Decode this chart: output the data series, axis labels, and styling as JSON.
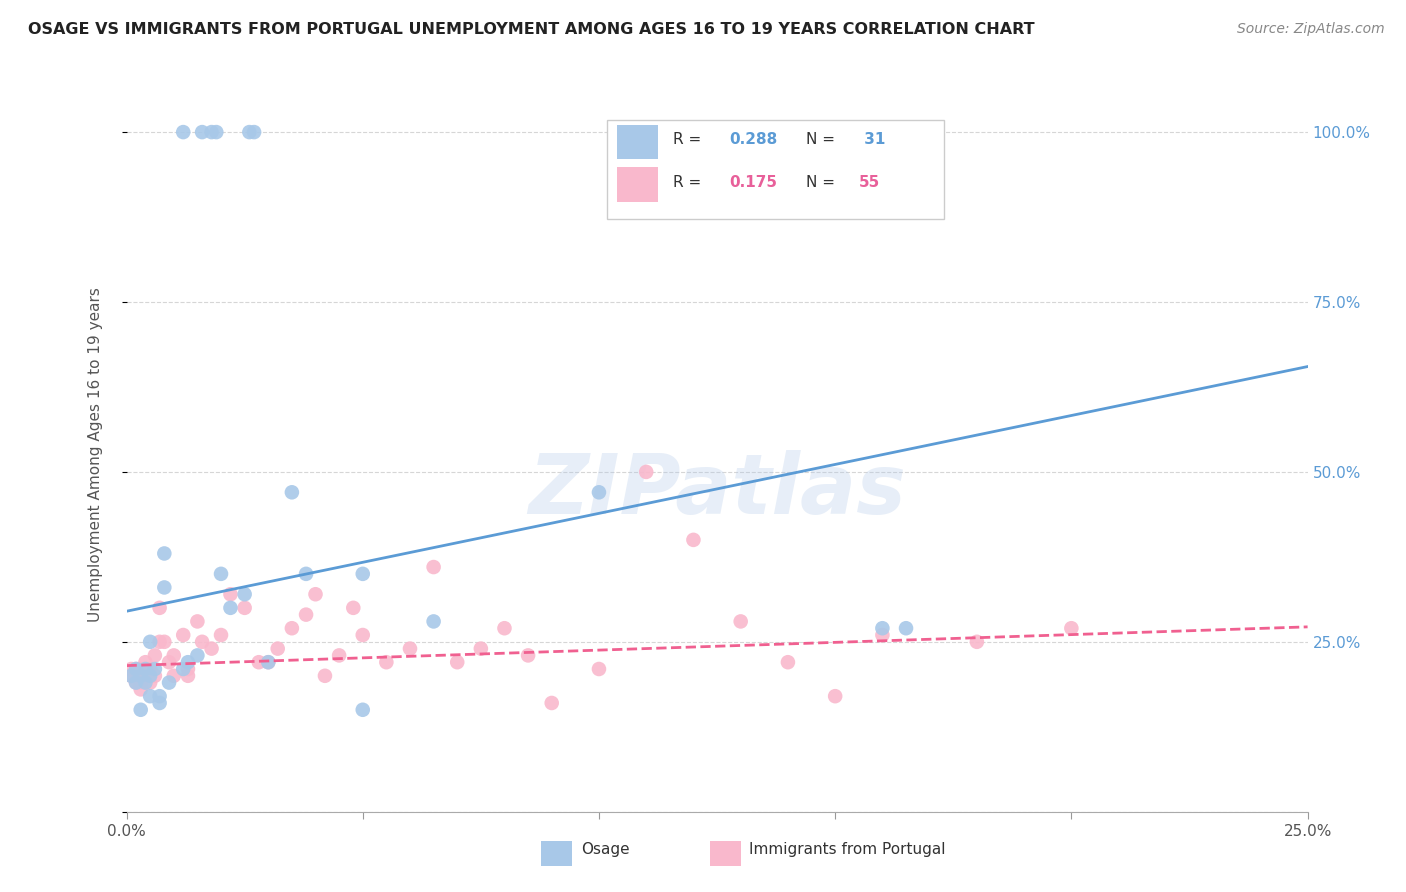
{
  "title": "OSAGE VS IMMIGRANTS FROM PORTUGAL UNEMPLOYMENT AMONG AGES 16 TO 19 YEARS CORRELATION CHART",
  "source": "Source: ZipAtlas.com",
  "ylabel": "Unemployment Among Ages 16 to 19 years",
  "xlim": [
    0.0,
    0.25
  ],
  "ylim": [
    0.0,
    1.05
  ],
  "xticks": [
    0.0,
    0.05,
    0.1,
    0.15,
    0.2,
    0.25
  ],
  "xticklabels": [
    "0.0%",
    "",
    "",
    "",
    "",
    "25.0%"
  ],
  "yticks": [
    0.0,
    0.25,
    0.5,
    0.75,
    1.0
  ],
  "yticklabels_right": [
    "",
    "25.0%",
    "50.0%",
    "75.0%",
    "100.0%"
  ],
  "watermark": "ZIPatlas",
  "osage_color": "#a8c8e8",
  "portugal_color": "#f9b8cc",
  "osage_line_color": "#5b9bd5",
  "portugal_line_color": "#f06090",
  "osage_x": [
    0.001,
    0.002,
    0.002,
    0.003,
    0.003,
    0.004,
    0.004,
    0.005,
    0.005,
    0.005,
    0.006,
    0.007,
    0.007,
    0.008,
    0.008,
    0.009,
    0.012,
    0.013,
    0.015,
    0.02,
    0.022,
    0.025,
    0.03,
    0.035,
    0.038,
    0.05,
    0.05,
    0.065,
    0.1,
    0.16,
    0.165
  ],
  "osage_y": [
    0.2,
    0.19,
    0.21,
    0.2,
    0.15,
    0.21,
    0.19,
    0.2,
    0.25,
    0.17,
    0.21,
    0.17,
    0.16,
    0.38,
    0.33,
    0.19,
    0.21,
    0.22,
    0.23,
    0.35,
    0.3,
    0.32,
    0.22,
    0.47,
    0.35,
    0.35,
    0.15,
    0.28,
    0.47,
    0.27,
    0.27
  ],
  "portugal_x": [
    0.001,
    0.001,
    0.002,
    0.002,
    0.003,
    0.003,
    0.003,
    0.004,
    0.004,
    0.005,
    0.005,
    0.006,
    0.006,
    0.007,
    0.007,
    0.008,
    0.009,
    0.01,
    0.01,
    0.012,
    0.013,
    0.013,
    0.015,
    0.016,
    0.018,
    0.02,
    0.022,
    0.025,
    0.028,
    0.03,
    0.032,
    0.035,
    0.038,
    0.04,
    0.042,
    0.045,
    0.048,
    0.05,
    0.055,
    0.06,
    0.065,
    0.07,
    0.075,
    0.08,
    0.085,
    0.09,
    0.1,
    0.11,
    0.12,
    0.13,
    0.14,
    0.15,
    0.16,
    0.18,
    0.2
  ],
  "portugal_y": [
    0.21,
    0.2,
    0.19,
    0.21,
    0.18,
    0.21,
    0.19,
    0.22,
    0.2,
    0.19,
    0.21,
    0.2,
    0.23,
    0.3,
    0.25,
    0.25,
    0.22,
    0.23,
    0.2,
    0.26,
    0.2,
    0.21,
    0.28,
    0.25,
    0.24,
    0.26,
    0.32,
    0.3,
    0.22,
    0.22,
    0.24,
    0.27,
    0.29,
    0.32,
    0.2,
    0.23,
    0.3,
    0.26,
    0.22,
    0.24,
    0.36,
    0.22,
    0.24,
    0.27,
    0.23,
    0.16,
    0.21,
    0.5,
    0.4,
    0.28,
    0.22,
    0.17,
    0.26,
    0.25,
    0.27
  ],
  "osage_100_x": [
    0.012,
    0.016,
    0.018,
    0.019,
    0.026,
    0.027,
    0.17
  ],
  "osage_100_y": [
    1.0,
    1.0,
    1.0,
    1.0,
    1.0,
    1.0,
    1.0
  ],
  "osage_line_x0": 0.0,
  "osage_line_y0": 0.295,
  "osage_line_x1": 0.25,
  "osage_line_y1": 0.655,
  "portugal_line_x0": 0.0,
  "portugal_line_y0": 0.215,
  "portugal_line_x1": 0.25,
  "portugal_line_y1": 0.272,
  "background_color": "#ffffff",
  "grid_color": "#cccccc"
}
